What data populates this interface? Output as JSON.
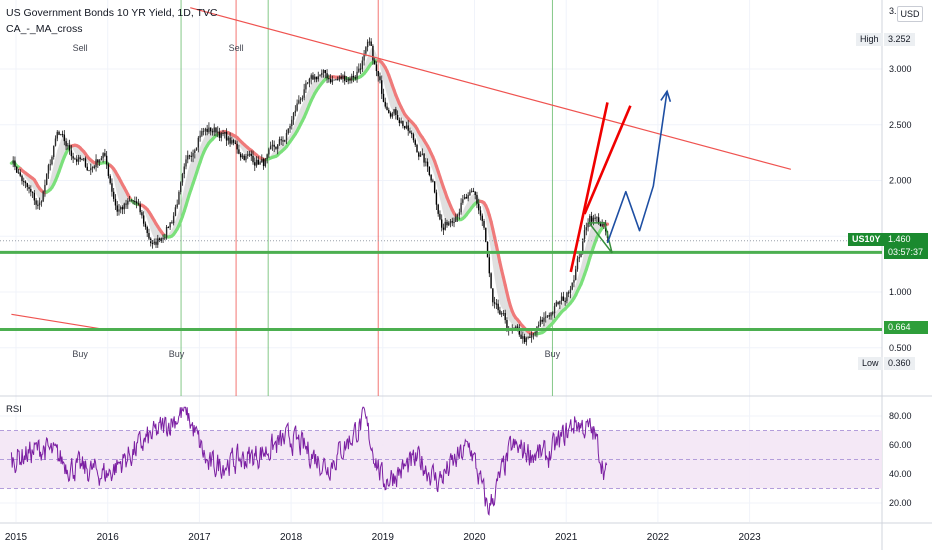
{
  "header": {
    "title": "US Government Bonds 10 YR Yield, 1D, TVC",
    "indicator": "CA_-_MA_cross",
    "currency_button": "USD"
  },
  "price_tags": {
    "high_label": "High",
    "high_value": "3.252",
    "low_label": "Low",
    "low_value": "0.360",
    "symbol": "US10Y",
    "last_value": "1.460",
    "countdown": "03:57:37",
    "support_value": "0.664"
  },
  "rsi_label": "RSI",
  "colors": {
    "up_ma": "#7be07b",
    "down_ma": "#ef7a7a",
    "trendline": "#ef5350",
    "support": "#4caf50",
    "projection_red": "#f00000",
    "projection_blue": "#1e4fa3",
    "rsi_line": "#7b1fa2",
    "rsi_band": "#f3e5f5",
    "green_vline": "#66bb6a",
    "red_vline": "#ef5350"
  },
  "chart_data": [
    {
      "type": "candlestick",
      "symbol": "US10Y",
      "title": "US Government Bonds 10 YR Yield, 1D, TVC",
      "x_ticks": [
        "2015",
        "2016",
        "2017",
        "2018",
        "2019",
        "2020",
        "2021",
        "2022",
        "2023"
      ],
      "y_ticks": [
        "3.",
        "3.000",
        "2.500",
        "2.000",
        "1.",
        "1.000",
        "0.500"
      ],
      "ylim": [
        0.3,
        3.52
      ],
      "approx_close_path": [
        {
          "x": 2014.95,
          "y": 2.2
        },
        {
          "x": 2015.1,
          "y": 1.95
        },
        {
          "x": 2015.25,
          "y": 1.75
        },
        {
          "x": 2015.45,
          "y": 2.4
        },
        {
          "x": 2015.6,
          "y": 2.25
        },
        {
          "x": 2015.8,
          "y": 2.1
        },
        {
          "x": 2015.95,
          "y": 2.25
        },
        {
          "x": 2016.1,
          "y": 1.75
        },
        {
          "x": 2016.3,
          "y": 1.8
        },
        {
          "x": 2016.5,
          "y": 1.4
        },
        {
          "x": 2016.7,
          "y": 1.65
        },
        {
          "x": 2016.85,
          "y": 2.1
        },
        {
          "x": 2017.0,
          "y": 2.45
        },
        {
          "x": 2017.2,
          "y": 2.45
        },
        {
          "x": 2017.45,
          "y": 2.25
        },
        {
          "x": 2017.7,
          "y": 2.15
        },
        {
          "x": 2017.95,
          "y": 2.4
        },
        {
          "x": 2018.1,
          "y": 2.75
        },
        {
          "x": 2018.3,
          "y": 2.95
        },
        {
          "x": 2018.5,
          "y": 2.9
        },
        {
          "x": 2018.7,
          "y": 2.95
        },
        {
          "x": 2018.85,
          "y": 3.2
        },
        {
          "x": 2019.0,
          "y": 2.75
        },
        {
          "x": 2019.2,
          "y": 2.55
        },
        {
          "x": 2019.4,
          "y": 2.25
        },
        {
          "x": 2019.55,
          "y": 2.0
        },
        {
          "x": 2019.65,
          "y": 1.55
        },
        {
          "x": 2019.85,
          "y": 1.8
        },
        {
          "x": 2020.0,
          "y": 1.85
        },
        {
          "x": 2020.1,
          "y": 1.6
        },
        {
          "x": 2020.2,
          "y": 0.85
        },
        {
          "x": 2020.4,
          "y": 0.65
        },
        {
          "x": 2020.6,
          "y": 0.55
        },
        {
          "x": 2020.8,
          "y": 0.8
        },
        {
          "x": 2021.0,
          "y": 0.95
        },
        {
          "x": 2021.15,
          "y": 1.35
        },
        {
          "x": 2021.25,
          "y": 1.7
        },
        {
          "x": 2021.4,
          "y": 1.6
        },
        {
          "x": 2021.45,
          "y": 1.46
        }
      ],
      "signals": [
        {
          "label": "Sell",
          "x": 2015.7
        },
        {
          "label": "Sell",
          "x": 2017.4
        },
        {
          "label": "Buy",
          "x": 2015.7
        },
        {
          "label": "Buy",
          "x": 2016.75
        },
        {
          "label": "Buy",
          "x": 2020.85
        }
      ],
      "vertical_lines": [
        {
          "x": 2016.8,
          "color": "green"
        },
        {
          "x": 2017.4,
          "color": "red"
        },
        {
          "x": 2017.75,
          "color": "green"
        },
        {
          "x": 2018.95,
          "color": "red"
        },
        {
          "x": 2020.85,
          "color": "green"
        }
      ],
      "horizontal_levels": [
        1.355,
        0.664
      ],
      "trendlines": [
        {
          "from": {
            "x": 2016.9,
            "y": 3.55
          },
          "to": {
            "x": 2023.45,
            "y": 2.1
          }
        },
        {
          "from": {
            "x": 2014.95,
            "y": 0.8
          },
          "to": {
            "x": 2016.0,
            "y": 0.66
          }
        }
      ],
      "projections": [
        {
          "color": "red",
          "points": [
            {
              "x": 2021.05,
              "y": 1.18
            },
            {
              "x": 2021.45,
              "y": 2.7
            }
          ]
        },
        {
          "color": "red",
          "points": [
            {
              "x": 2021.2,
              "y": 1.7
            },
            {
              "x": 2021.7,
              "y": 2.67
            }
          ]
        },
        {
          "color": "blue",
          "points": [
            {
              "x": 2021.45,
              "y": 1.44
            },
            {
              "x": 2021.65,
              "y": 1.9
            },
            {
              "x": 2021.8,
              "y": 1.55
            },
            {
              "x": 2021.95,
              "y": 1.95
            },
            {
              "x": 2022.1,
              "y": 2.8
            }
          ]
        }
      ]
    },
    {
      "type": "line",
      "name": "RSI",
      "y_ticks": [
        "80.00",
        "60.00",
        "40.00",
        "20.00"
      ],
      "ylim": [
        10,
        88
      ],
      "bands": [
        30,
        70
      ],
      "approx_path": [
        {
          "x": 2014.95,
          "y": 50
        },
        {
          "x": 2015.3,
          "y": 58
        },
        {
          "x": 2015.6,
          "y": 45
        },
        {
          "x": 2016.0,
          "y": 40
        },
        {
          "x": 2016.4,
          "y": 62
        },
        {
          "x": 2016.85,
          "y": 84
        },
        {
          "x": 2017.1,
          "y": 45
        },
        {
          "x": 2017.6,
          "y": 52
        },
        {
          "x": 2018.0,
          "y": 65
        },
        {
          "x": 2018.4,
          "y": 45
        },
        {
          "x": 2018.8,
          "y": 77
        },
        {
          "x": 2019.0,
          "y": 35
        },
        {
          "x": 2019.4,
          "y": 50
        },
        {
          "x": 2019.6,
          "y": 35
        },
        {
          "x": 2019.95,
          "y": 60
        },
        {
          "x": 2020.15,
          "y": 15
        },
        {
          "x": 2020.4,
          "y": 58
        },
        {
          "x": 2020.8,
          "y": 52
        },
        {
          "x": 2021.1,
          "y": 76
        },
        {
          "x": 2021.3,
          "y": 68
        },
        {
          "x": 2021.45,
          "y": 37
        }
      ]
    }
  ]
}
